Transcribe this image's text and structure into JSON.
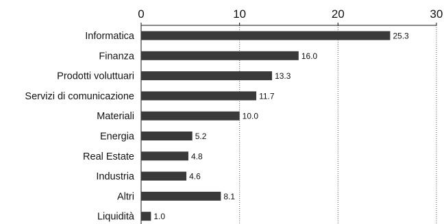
{
  "chart_data": {
    "type": "bar",
    "orientation": "horizontal",
    "categories": [
      "Informatica",
      "Finanza",
      "Prodotti voluttuari",
      "Servizi di comunicazione",
      "Materiali",
      "Energia",
      "Real Estate",
      "Industria",
      "Altri",
      "Liquidità"
    ],
    "values": [
      25.3,
      16.0,
      13.3,
      11.7,
      10.0,
      5.2,
      4.8,
      4.6,
      8.1,
      1.0
    ],
    "value_labels": [
      "25.3",
      "16.0",
      "13.3",
      "11.7",
      "10.0",
      "5.2",
      "4.8",
      "4.6",
      "8.1",
      "1.0"
    ],
    "x_ticks": [
      "0",
      "10",
      "20",
      "30"
    ],
    "xlim": [
      0,
      30
    ],
    "grid": "vertical dotted",
    "legend": "none",
    "colors": {
      "bar": "#3a3a3a",
      "text": "#111111",
      "grid": "#555555"
    }
  }
}
